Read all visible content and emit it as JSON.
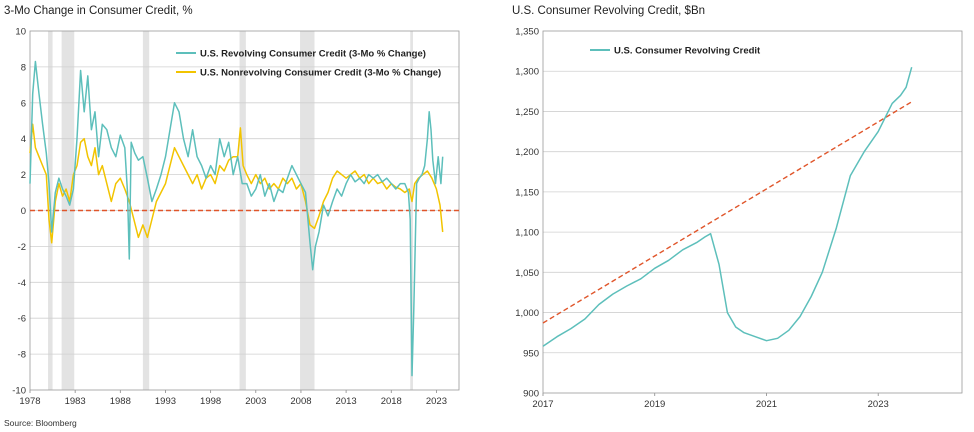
{
  "source": "Source: Bloomberg",
  "chart_data": [
    {
      "type": "line",
      "title": "3-Mo Change in Consumer Credit, %",
      "xlabel": "",
      "ylabel": "",
      "xlim": [
        1978,
        2025.5
      ],
      "ylim": [
        -10,
        10
      ],
      "yticks": [
        -10,
        -8,
        -6,
        -4,
        -2,
        0,
        2,
        4,
        6,
        8,
        10
      ],
      "xtick_labels": [
        "1978",
        "1983",
        "1988",
        "1993",
        "1998",
        "2003",
        "2008",
        "2013",
        "2018",
        "2023"
      ],
      "xtick_values": [
        1978,
        1983,
        1988,
        1993,
        1998,
        2003,
        2008,
        2013,
        2018,
        2023
      ],
      "grid": "horizontal",
      "legend": "top-right",
      "recessions": [
        [
          1980.0,
          1980.5
        ],
        [
          1981.5,
          1982.9
        ],
        [
          1990.5,
          1991.2
        ],
        [
          2001.2,
          2001.9
        ],
        [
          2007.9,
          2009.5
        ],
        [
          2020.1,
          2020.4
        ]
      ],
      "reference_line": {
        "y": 0,
        "color": "#e0552a",
        "style": "dashed"
      },
      "series": [
        {
          "name": "U.S. Revolving Consumer Credit (3-Mo % Change)",
          "color": "#5dbfbb",
          "x": [
            1978.0,
            1978.3,
            1978.6,
            1979.0,
            1979.4,
            1979.8,
            1980.1,
            1980.4,
            1980.8,
            1981.2,
            1981.6,
            1982.0,
            1982.4,
            1982.8,
            1983.2,
            1983.6,
            1984.0,
            1984.4,
            1984.8,
            1985.2,
            1985.6,
            1986.0,
            1986.5,
            1987.0,
            1987.5,
            1988.0,
            1988.5,
            1988.8,
            1989.0,
            1989.2,
            1989.6,
            1990.0,
            1990.5,
            1991.0,
            1991.5,
            1992.0,
            1992.5,
            1993.0,
            1993.5,
            1994.0,
            1994.5,
            1995.0,
            1995.5,
            1996.0,
            1996.5,
            1997.0,
            1997.5,
            1998.0,
            1998.5,
            1999.0,
            1999.5,
            2000.0,
            2000.5,
            2001.0,
            2001.5,
            2002.0,
            2002.5,
            2003.0,
            2003.5,
            2004.0,
            2004.5,
            2005.0,
            2005.5,
            2006.0,
            2006.5,
            2007.0,
            2007.5,
            2008.0,
            2008.5,
            2009.0,
            2009.3,
            2009.6,
            2010.0,
            2010.5,
            2011.0,
            2011.5,
            2012.0,
            2012.5,
            2013.0,
            2013.5,
            2014.0,
            2014.5,
            2015.0,
            2015.5,
            2016.0,
            2016.5,
            2017.0,
            2017.5,
            2018.0,
            2018.5,
            2019.0,
            2019.5,
            2019.9,
            2020.1,
            2020.3,
            2020.5,
            2020.8,
            2021.1,
            2021.4,
            2021.7,
            2022.0,
            2022.2,
            2022.4,
            2022.6,
            2022.9,
            2023.2,
            2023.5,
            2023.7
          ],
          "values": [
            1.5,
            6.5,
            8.3,
            6.5,
            4.8,
            3.2,
            1.5,
            -1.2,
            1.0,
            1.8,
            1.2,
            0.8,
            0.3,
            1.2,
            4.0,
            7.8,
            5.5,
            7.5,
            4.5,
            5.5,
            3.0,
            4.8,
            4.5,
            3.5,
            3.0,
            4.2,
            3.5,
            1.0,
            -2.7,
            3.8,
            3.2,
            2.8,
            3.0,
            1.8,
            0.5,
            1.2,
            2.0,
            3.0,
            4.5,
            6.0,
            5.5,
            4.0,
            3.0,
            4.5,
            3.0,
            2.5,
            1.8,
            2.5,
            2.0,
            4.0,
            3.0,
            3.8,
            2.0,
            3.0,
            1.5,
            1.5,
            0.8,
            1.2,
            2.0,
            0.8,
            1.5,
            0.5,
            1.2,
            1.0,
            1.8,
            2.5,
            2.0,
            1.5,
            1.0,
            -1.8,
            -3.3,
            -2.0,
            -1.2,
            0.3,
            -0.3,
            0.5,
            1.2,
            0.8,
            1.5,
            2.0,
            1.6,
            1.8,
            1.5,
            2.0,
            1.8,
            2.0,
            1.6,
            1.8,
            1.5,
            1.2,
            1.5,
            1.5,
            1.0,
            -0.5,
            -9.2,
            -5.5,
            1.5,
            1.8,
            2.0,
            2.5,
            4.0,
            5.5,
            4.5,
            2.8,
            1.5,
            3.0,
            1.5,
            3.0
          ]
        },
        {
          "name": "U.S. Nonrevolving Consumer Credit (3-Mo % Change)",
          "color": "#f2c400",
          "x": [
            1978.0,
            1978.3,
            1978.6,
            1979.0,
            1979.4,
            1979.8,
            1980.1,
            1980.4,
            1980.8,
            1981.2,
            1981.6,
            1982.0,
            1982.4,
            1982.8,
            1983.2,
            1983.6,
            1984.0,
            1984.4,
            1984.8,
            1985.2,
            1985.6,
            1986.0,
            1986.5,
            1987.0,
            1987.5,
            1988.0,
            1988.5,
            1989.0,
            1989.5,
            1990.0,
            1990.5,
            1991.0,
            1991.5,
            1992.0,
            1992.5,
            1993.0,
            1993.5,
            1994.0,
            1994.5,
            1995.0,
            1995.5,
            1996.0,
            1996.5,
            1997.0,
            1997.5,
            1998.0,
            1998.5,
            1999.0,
            1999.5,
            2000.0,
            2000.5,
            2001.0,
            2001.3,
            2001.6,
            2002.0,
            2002.5,
            2003.0,
            2003.5,
            2004.0,
            2004.5,
            2005.0,
            2005.5,
            2006.0,
            2006.5,
            2007.0,
            2007.5,
            2008.0,
            2008.5,
            2009.0,
            2009.5,
            2010.0,
            2010.5,
            2011.0,
            2011.5,
            2012.0,
            2012.5,
            2013.0,
            2013.5,
            2014.0,
            2014.5,
            2015.0,
            2015.5,
            2016.0,
            2016.5,
            2017.0,
            2017.5,
            2018.0,
            2018.5,
            2019.0,
            2019.5,
            2020.0,
            2020.3,
            2020.6,
            2021.0,
            2021.5,
            2022.0,
            2022.5,
            2023.0,
            2023.4,
            2023.7
          ],
          "values": [
            3.2,
            4.8,
            3.5,
            3.0,
            2.5,
            2.0,
            -0.5,
            -1.8,
            0.5,
            1.5,
            0.8,
            1.2,
            0.5,
            2.0,
            2.5,
            3.8,
            4.0,
            3.0,
            2.5,
            3.5,
            2.0,
            2.5,
            1.5,
            0.5,
            1.5,
            1.8,
            1.2,
            0.5,
            -0.5,
            -1.5,
            -0.8,
            -1.5,
            -0.5,
            0.5,
            1.0,
            1.5,
            2.5,
            3.5,
            3.0,
            2.5,
            2.0,
            1.5,
            2.0,
            1.2,
            1.8,
            2.0,
            1.5,
            2.5,
            2.2,
            2.8,
            3.0,
            3.0,
            4.6,
            2.5,
            2.0,
            1.5,
            2.0,
            1.5,
            1.8,
            1.2,
            1.5,
            1.2,
            1.8,
            1.5,
            1.8,
            1.2,
            1.5,
            0.5,
            -0.8,
            -1.0,
            -0.3,
            0.5,
            1.0,
            1.8,
            2.2,
            2.0,
            1.8,
            2.0,
            2.2,
            1.8,
            2.0,
            1.5,
            1.8,
            1.5,
            1.6,
            1.2,
            1.5,
            1.3,
            1.2,
            1.0,
            1.2,
            0.5,
            1.5,
            1.8,
            2.0,
            2.2,
            1.8,
            1.2,
            0.3,
            -1.2
          ]
        }
      ]
    },
    {
      "type": "line",
      "title": "U.S. Consumer Revolving Credit, $Bn",
      "xlabel": "",
      "ylabel": "",
      "xlim": [
        2017,
        2024.5
      ],
      "ylim": [
        900,
        1350
      ],
      "yticks": [
        900,
        950,
        1000,
        1050,
        1100,
        1150,
        1200,
        1250,
        1300,
        1350
      ],
      "ytick_labels": [
        "900",
        "950",
        "1,000",
        "1,050",
        "1,100",
        "1,150",
        "1,200",
        "1,250",
        "1,300",
        "1,350"
      ],
      "xtick_labels": [
        "2017",
        "2019",
        "2021",
        "2023"
      ],
      "xtick_values": [
        2017,
        2019,
        2021,
        2023
      ],
      "grid": "horizontal",
      "legend": "top-left",
      "trend_line": {
        "x": [
          2017.0,
          2023.6
        ],
        "y": [
          987,
          1262
        ],
        "color": "#e0552a",
        "style": "dashed"
      },
      "series": [
        {
          "name": "U.S. Consumer Revolving Credit",
          "color": "#5dbfbb",
          "x": [
            2017.0,
            2017.25,
            2017.5,
            2017.75,
            2018.0,
            2018.25,
            2018.5,
            2018.75,
            2019.0,
            2019.25,
            2019.5,
            2019.75,
            2019.9,
            2020.0,
            2020.15,
            2020.3,
            2020.45,
            2020.6,
            2020.8,
            2021.0,
            2021.2,
            2021.4,
            2021.6,
            2021.8,
            2022.0,
            2022.25,
            2022.5,
            2022.75,
            2023.0,
            2023.25,
            2023.4,
            2023.5,
            2023.6
          ],
          "values": [
            958,
            970,
            980,
            992,
            1010,
            1023,
            1033,
            1042,
            1055,
            1065,
            1078,
            1087,
            1094,
            1098,
            1060,
            1000,
            982,
            975,
            970,
            965,
            968,
            978,
            995,
            1020,
            1050,
            1105,
            1170,
            1200,
            1225,
            1260,
            1270,
            1280,
            1305
          ]
        }
      ]
    }
  ]
}
